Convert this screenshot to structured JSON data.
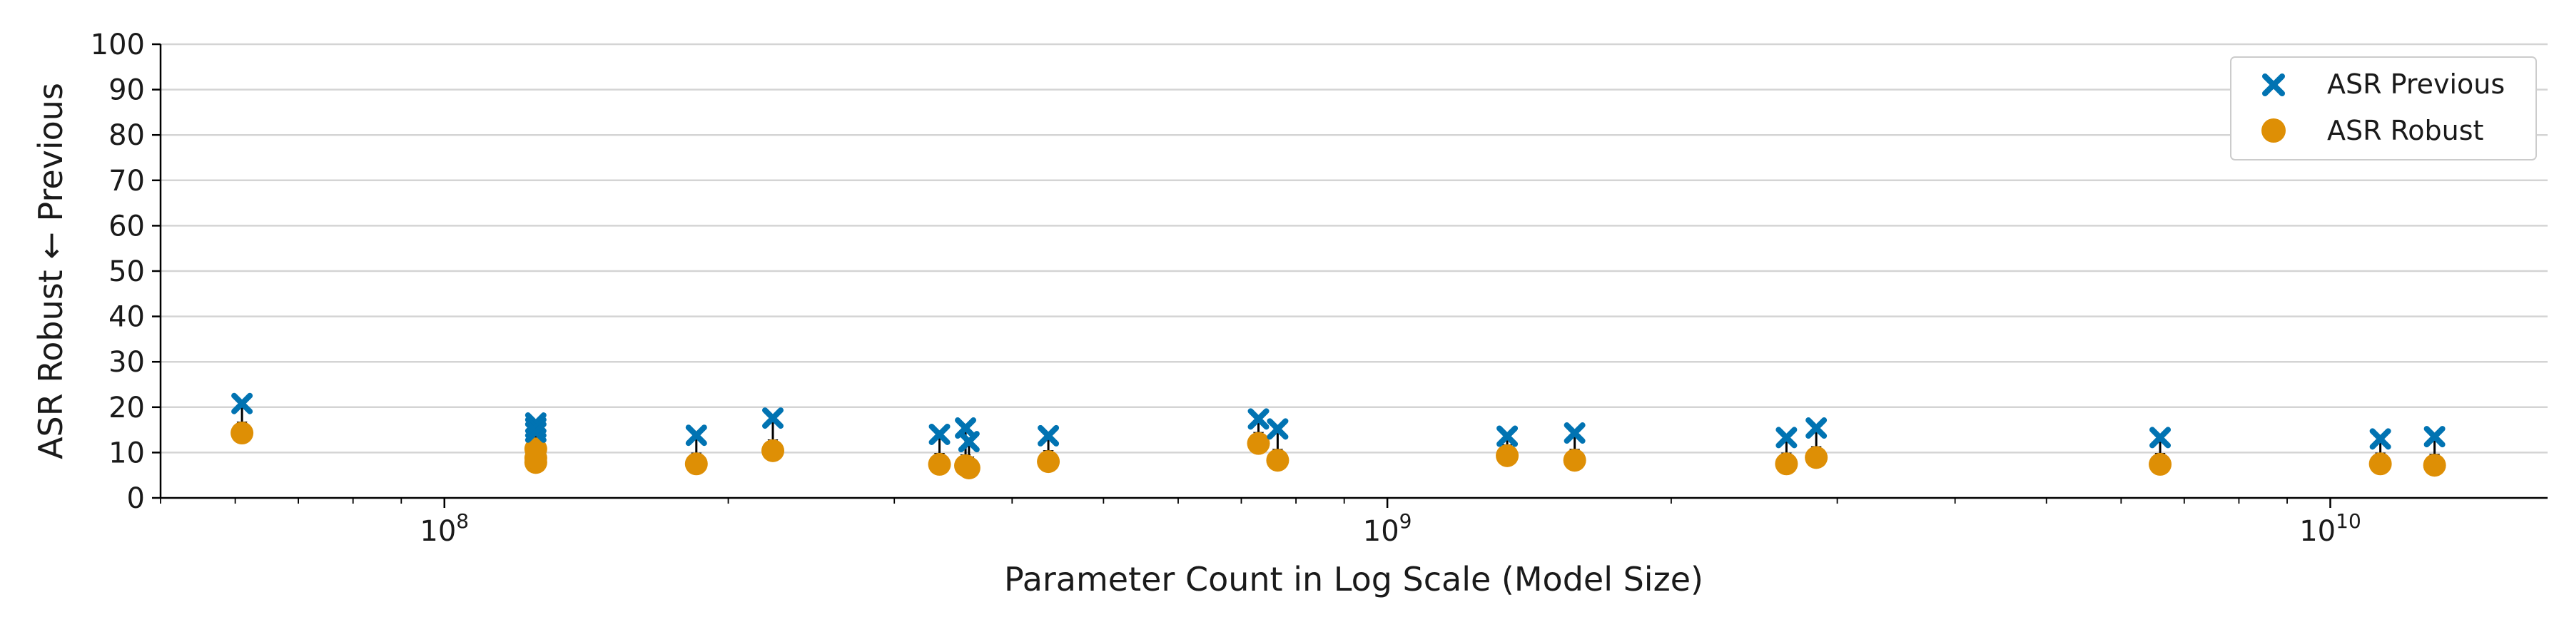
{
  "chart_data": {
    "type": "scatter",
    "xlabel": "Parameter Count in Log Scale (Model Size)",
    "ylabel": "ASR Robust ← Previous",
    "xscale": "log",
    "xlim": [
      50000000,
      17000000000
    ],
    "ylim": [
      0,
      100
    ],
    "yticks": [
      0,
      10,
      20,
      30,
      40,
      50,
      60,
      70,
      80,
      90,
      100
    ],
    "xticks": [
      {
        "value": 100000000,
        "base": "10",
        "exp": "8"
      },
      {
        "value": 1000000000,
        "base": "10",
        "exp": "9"
      },
      {
        "value": 10000000000,
        "base": "10",
        "exp": "10"
      }
    ],
    "grid": "horizontal",
    "legend_position": "top-right",
    "series": [
      {
        "name": "ASR Previous",
        "marker": "x",
        "color": "#0173b2"
      },
      {
        "name": "ASR Robust",
        "marker": "circle",
        "color": "#de8f05"
      }
    ],
    "points": [
      {
        "x": 61000000,
        "previous": 20.8,
        "robust": 14.3
      },
      {
        "x": 125000000,
        "previous": 16.5,
        "robust": 10.8
      },
      {
        "x": 125000000,
        "previous": 15.5,
        "robust": 7.8
      },
      {
        "x": 125000000,
        "previous": 14.5,
        "robust": 8.8
      },
      {
        "x": 185000000,
        "previous": 13.8,
        "robust": 7.5
      },
      {
        "x": 223000000,
        "previous": 17.6,
        "robust": 10.4
      },
      {
        "x": 335000000,
        "previous": 14.0,
        "robust": 7.4
      },
      {
        "x": 357000000,
        "previous": 15.4,
        "robust": 7.1
      },
      {
        "x": 360000000,
        "previous": 12.4,
        "robust": 6.6
      },
      {
        "x": 437000000,
        "previous": 13.7,
        "robust": 8.0
      },
      {
        "x": 730000000,
        "previous": 17.4,
        "robust": 12.0
      },
      {
        "x": 765000000,
        "previous": 15.2,
        "robust": 8.3
      },
      {
        "x": 1340000000,
        "previous": 13.6,
        "robust": 9.3
      },
      {
        "x": 1580000000,
        "previous": 14.3,
        "robust": 8.3
      },
      {
        "x": 2650000000,
        "previous": 13.3,
        "robust": 7.5
      },
      {
        "x": 2850000000,
        "previous": 15.4,
        "robust": 8.9
      },
      {
        "x": 6600000000,
        "previous": 13.3,
        "robust": 7.4
      },
      {
        "x": 11300000000,
        "previous": 13.0,
        "robust": 7.5
      },
      {
        "x": 12900000000,
        "previous": 13.5,
        "robust": 7.2
      }
    ]
  }
}
